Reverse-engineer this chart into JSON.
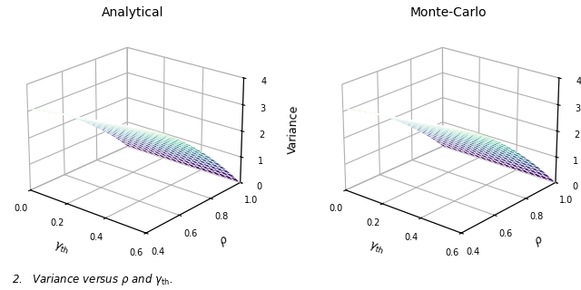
{
  "title_left": "Analytical",
  "title_right": "Monte-Carlo",
  "zlabel": "Variance",
  "rho_range": [
    0.4,
    1.0
  ],
  "gamma_range": [
    0.0,
    0.6
  ],
  "zlim": [
    0,
    4
  ],
  "zticks": [
    0,
    1,
    2,
    3,
    4
  ],
  "rho_ticks": [
    0.4,
    0.6,
    0.8,
    1.0
  ],
  "gamma_ticks": [
    0.0,
    0.2,
    0.4,
    0.6
  ],
  "n_points": 20,
  "figsize": [
    6.4,
    3.2
  ],
  "dpi": 100,
  "elev": 22,
  "azim": -50,
  "cmap": "viridis",
  "edgecolor": "white",
  "linewidth": 0.4
}
